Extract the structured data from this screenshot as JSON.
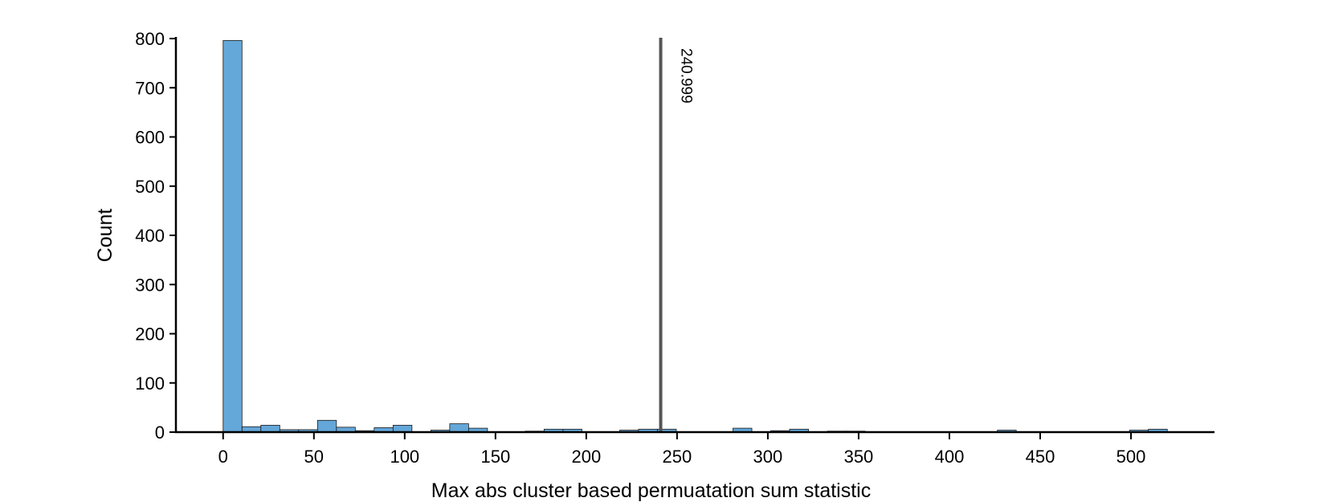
{
  "chart_data": {
    "type": "bar",
    "title": "",
    "xlabel": "Max abs cluster based permuatation sum statistic",
    "ylabel": "Count",
    "xlim": [
      -26,
      546
    ],
    "ylim": [
      0,
      800
    ],
    "xticks": [
      0,
      50,
      100,
      150,
      200,
      250,
      300,
      350,
      400,
      450,
      500
    ],
    "yticks": [
      0,
      100,
      200,
      300,
      400,
      500,
      600,
      700,
      800
    ],
    "bin_width": 10.4,
    "bar_color": "#64a7d9",
    "line_color": "#555555",
    "grid": false,
    "bins": [
      {
        "x0": 0.0,
        "count": 796
      },
      {
        "x0": 10.4,
        "count": 11
      },
      {
        "x0": 20.8,
        "count": 14
      },
      {
        "x0": 31.2,
        "count": 5
      },
      {
        "x0": 41.6,
        "count": 5
      },
      {
        "x0": 52.0,
        "count": 24
      },
      {
        "x0": 62.4,
        "count": 10
      },
      {
        "x0": 72.8,
        "count": 3
      },
      {
        "x0": 83.2,
        "count": 9
      },
      {
        "x0": 93.6,
        "count": 14
      },
      {
        "x0": 114.4,
        "count": 4
      },
      {
        "x0": 124.8,
        "count": 17
      },
      {
        "x0": 135.2,
        "count": 8
      },
      {
        "x0": 166.4,
        "count": 2
      },
      {
        "x0": 176.8,
        "count": 6
      },
      {
        "x0": 187.2,
        "count": 6
      },
      {
        "x0": 218.4,
        "count": 4
      },
      {
        "x0": 228.8,
        "count": 6
      },
      {
        "x0": 239.2,
        "count": 6
      },
      {
        "x0": 280.8,
        "count": 8
      },
      {
        "x0": 301.6,
        "count": 3
      },
      {
        "x0": 312.0,
        "count": 6
      },
      {
        "x0": 332.8,
        "count": 2
      },
      {
        "x0": 343.2,
        "count": 2
      },
      {
        "x0": 426.4,
        "count": 4
      },
      {
        "x0": 499.2,
        "count": 4
      },
      {
        "x0": 509.6,
        "count": 6
      }
    ],
    "reference_line": {
      "value": 240.999,
      "label": "240.999"
    }
  }
}
